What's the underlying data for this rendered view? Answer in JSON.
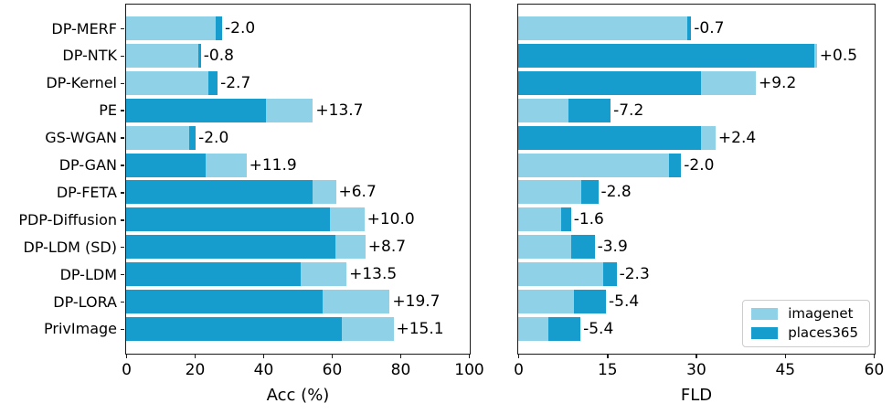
{
  "figure": {
    "background": "#ffffff",
    "series_colors": {
      "imagenet": "#8FD2E8",
      "places365": "#169DCD"
    },
    "legend": {
      "position": "lower right",
      "items": [
        {
          "label": "imagenet",
          "color": "#8FD2E8"
        },
        {
          "label": "places365",
          "color": "#169DCD"
        }
      ]
    }
  },
  "chart_data": [
    {
      "type": "bar",
      "orientation": "horizontal",
      "title": "",
      "xlabel": "Acc (%)",
      "ylabel": "",
      "xlim": [
        0,
        100
      ],
      "xticks": [
        "0",
        "20",
        "40",
        "60",
        "80",
        "100"
      ],
      "grid": false,
      "categories": [
        "DP-MERF",
        "DP-NTK",
        "DP-Kernel",
        "PE",
        "GS-WGAN",
        "DP-GAN",
        "DP-FETA",
        "PDP-Diffusion",
        "DP-LDM (SD)",
        "DP-LDM",
        "DP-LORA",
        "PrivImage"
      ],
      "series": [
        {
          "name": "imagenet",
          "values": [
            26.0,
            21.0,
            24.0,
            54.5,
            18.3,
            35.1,
            61.2,
            69.5,
            69.8,
            64.3,
            76.9,
            78.0
          ]
        },
        {
          "name": "places365",
          "values": [
            28.0,
            21.8,
            26.7,
            40.8,
            20.3,
            23.2,
            54.5,
            59.5,
            61.1,
            50.8,
            57.2,
            62.9
          ]
        }
      ],
      "annotations": [
        "-2.0",
        "-0.8",
        "-2.7",
        "+13.7",
        "-2.0",
        "+11.9",
        "+6.7",
        "+10.0",
        "+8.7",
        "+13.5",
        "+19.7",
        "+15.1"
      ]
    },
    {
      "type": "bar",
      "orientation": "horizontal",
      "title": "",
      "xlabel": "FLD",
      "ylabel": "",
      "xlim": [
        0,
        60
      ],
      "xticks": [
        "0",
        "15",
        "30",
        "45",
        "60"
      ],
      "grid": false,
      "categories": [
        "DP-MERF",
        "DP-NTK",
        "DP-Kernel",
        "PE",
        "GS-WGAN",
        "DP-GAN",
        "DP-FETA",
        "PDP-Diffusion",
        "DP-LDM (SD)",
        "DP-LDM",
        "DP-LORA",
        "PrivImage"
      ],
      "series": [
        {
          "name": "imagenet",
          "values": [
            28.5,
            50.4,
            40.1,
            8.4,
            33.3,
            25.5,
            10.7,
            7.3,
            9.0,
            14.3,
            9.4,
            5.1
          ]
        },
        {
          "name": "places365",
          "values": [
            29.2,
            49.9,
            30.9,
            15.6,
            30.9,
            27.5,
            13.5,
            8.9,
            12.9,
            16.6,
            14.8,
            10.5
          ]
        }
      ],
      "annotations": [
        "-0.7",
        "+0.5",
        "+9.2",
        "-7.2",
        "+2.4",
        "-2.0",
        "-2.8",
        "-1.6",
        "-3.9",
        "-2.3",
        "-5.4",
        "-5.4"
      ]
    }
  ]
}
